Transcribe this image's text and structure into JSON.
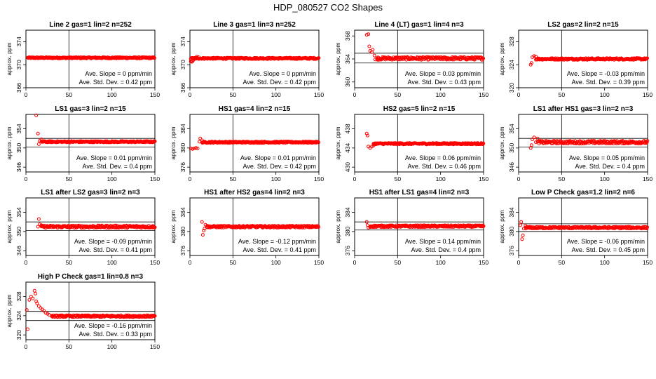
{
  "page": {
    "title": "HDP_080527   CO2 Shapes"
  },
  "style": {
    "point_color": "#ff0000",
    "line_color": "#000000"
  },
  "chart_data": [
    {
      "type": "scatter",
      "title": "Line 2 gas=1 lin=2 n=252",
      "ylabel": "approx. ppm",
      "xlim": [
        0,
        150
      ],
      "ylim": [
        366,
        376
      ],
      "yticks": [
        366,
        370,
        374
      ],
      "xticks": [
        0,
        50,
        100,
        150
      ],
      "vline": 50,
      "hlines": [
        371.2
      ],
      "slope_label": "Ave. Slope =",
      "slope_value": "0",
      "slope_unit": "ppm/min",
      "std_label": "Ave. Std. Dev. =",
      "std_value": "0.42",
      "std_unit": "ppm",
      "base": 371.2,
      "initial": [],
      "noise": 0.12,
      "x_start": 2,
      "x_end": 150
    },
    {
      "type": "scatter",
      "title": "Line 3 gas=1 lin=3 n=252",
      "ylabel": "approx. ppm",
      "xlim": [
        0,
        150
      ],
      "ylim": [
        366,
        376
      ],
      "yticks": [
        366,
        370,
        374
      ],
      "xticks": [
        0,
        50,
        100,
        150
      ],
      "vline": 50,
      "hlines": [],
      "slope_label": "Ave. Slope =",
      "slope_value": "0",
      "slope_unit": "ppm/min",
      "std_label": "Ave. Std. Dev. =",
      "std_value": "0.42",
      "std_unit": "ppm",
      "base": 371.1,
      "initial": [
        [
          1,
          370.6
        ],
        [
          2,
          370.5
        ],
        [
          3,
          370.6
        ],
        [
          4,
          370.8
        ],
        [
          5,
          371.0
        ],
        [
          6,
          371.1
        ],
        [
          8,
          371.4
        ],
        [
          10,
          371.3
        ]
      ],
      "noise": 0.12,
      "x_start": 1,
      "x_end": 150
    },
    {
      "type": "scatter",
      "title": "Line 4 (LT) gas=1 lin=4 n=3",
      "ylabel": "approx. ppm",
      "xlim": [
        0,
        150
      ],
      "ylim": [
        359,
        369
      ],
      "yticks": [
        360,
        364,
        368
      ],
      "xticks": [
        0,
        50,
        100,
        150
      ],
      "vline": 50,
      "hlines": [
        365.0,
        363.3
      ],
      "slope_label": "Ave. Slope =",
      "slope_value": "0.03",
      "slope_unit": "ppm/min",
      "std_label": "Ave. Std. Dev. =",
      "std_value": "0.43",
      "std_unit": "ppm",
      "base": 364.1,
      "initial": [
        [
          14,
          368.2
        ],
        [
          16,
          368.3
        ],
        [
          17,
          366.2
        ],
        [
          18,
          365.4
        ],
        [
          20,
          365.2
        ],
        [
          21,
          365.6
        ],
        [
          23,
          364.6
        ],
        [
          24,
          363.9
        ],
        [
          26,
          364.0
        ]
      ],
      "noise": 0.25,
      "x_start": 26,
      "x_end": 150
    },
    {
      "type": "scatter",
      "title": "LS2 gas=2 lin=2 n=15",
      "ylabel": "approx. ppm",
      "xlim": [
        0,
        150
      ],
      "ylim": [
        320,
        330
      ],
      "yticks": [
        320,
        324,
        328
      ],
      "xticks": [
        0,
        50,
        100,
        150
      ],
      "vline": 50,
      "hlines": [],
      "slope_label": "Ave. Slope =",
      "slope_value": "-0.03",
      "slope_unit": "ppm/min",
      "std_label": "Ave. Std. Dev. =",
      "std_value": "0.39",
      "std_unit": "ppm",
      "base": 325.0,
      "initial": [
        [
          14,
          324.0
        ],
        [
          15,
          324.3
        ],
        [
          16,
          325.3
        ],
        [
          18,
          325.5
        ],
        [
          20,
          325.4
        ]
      ],
      "noise": 0.15,
      "x_start": 20,
      "x_end": 150
    },
    {
      "type": "scatter",
      "title": "LS1 gas=3 lin=2 n=15",
      "ylabel": "approx. ppm",
      "xlim": [
        0,
        150
      ],
      "ylim": [
        345,
        357
      ],
      "yticks": [
        346,
        350,
        354
      ],
      "xticks": [
        0,
        50,
        100,
        150
      ],
      "vline": 50,
      "hlines": [
        352.0,
        350.2
      ],
      "slope_label": "Ave. Slope =",
      "slope_value": "0.01",
      "slope_unit": "ppm/min",
      "std_label": "Ave. Std. Dev. =",
      "std_value": "0.4",
      "std_unit": "ppm",
      "base": 351.3,
      "initial": [
        [
          12,
          356.8
        ],
        [
          14,
          353.0
        ],
        [
          15,
          350.8
        ],
        [
          16,
          351.5
        ],
        [
          18,
          351.8
        ]
      ],
      "noise": 0.15,
      "x_start": 18,
      "x_end": 150
    },
    {
      "type": "scatter",
      "title": "HS1 gas=4 lin=2 n=15",
      "ylabel": "approx. ppm",
      "xlim": [
        0,
        150
      ],
      "ylim": [
        375,
        387
      ],
      "yticks": [
        376,
        380,
        384
      ],
      "xticks": [
        0,
        50,
        100,
        150
      ],
      "vline": 50,
      "hlines": [],
      "slope_label": "Ave. Slope =",
      "slope_value": "0.01",
      "slope_unit": "ppm/min",
      "std_label": "Ave. Std. Dev. =",
      "std_value": "0.42",
      "std_unit": "ppm",
      "base": 381.2,
      "initial": [
        [
          1,
          379.9
        ],
        [
          3,
          379.8
        ],
        [
          5,
          379.9
        ],
        [
          7,
          380.0
        ],
        [
          9,
          379.9
        ],
        [
          11,
          381.3
        ],
        [
          12,
          382.0
        ],
        [
          14,
          381.6
        ]
      ],
      "noise": 0.15,
      "x_start": 14,
      "x_end": 150
    },
    {
      "type": "scatter",
      "title": "HS2 gas=5 lin=2 n=15",
      "ylabel": "approx. ppm",
      "xlim": [
        0,
        150
      ],
      "ylim": [
        429,
        441
      ],
      "yticks": [
        430,
        434,
        438
      ],
      "xticks": [
        0,
        50,
        100,
        150
      ],
      "vline": 50,
      "hlines": [],
      "slope_label": "Ave. Slope =",
      "slope_value": "0.06",
      "slope_unit": "ppm/min",
      "std_label": "Ave. Std. Dev. =",
      "std_value": "0.46",
      "std_unit": "ppm",
      "base": 434.9,
      "initial": [
        [
          14,
          437.0
        ],
        [
          15,
          436.6
        ],
        [
          16,
          434.3
        ],
        [
          18,
          434.0
        ],
        [
          20,
          434.3
        ],
        [
          22,
          434.5
        ]
      ],
      "noise": 0.15,
      "x_start": 22,
      "x_end": 150
    },
    {
      "type": "scatter",
      "title": "LS1 after HS1 gas=3 lin=2 n=3",
      "ylabel": "approx. ppm",
      "xlim": [
        0,
        150
      ],
      "ylim": [
        345,
        357
      ],
      "yticks": [
        346,
        350,
        354
      ],
      "xticks": [
        0,
        50,
        100,
        150
      ],
      "vline": 50,
      "hlines": [
        352.0,
        350.2
      ],
      "slope_label": "Ave. Slope =",
      "slope_value": "0.05",
      "slope_unit": "ppm/min",
      "std_label": "Ave. Std. Dev. =",
      "std_value": "0.4",
      "std_unit": "ppm",
      "base": 351.2,
      "initial": [
        [
          14,
          350.0
        ],
        [
          15,
          350.6
        ],
        [
          16,
          351.8
        ],
        [
          18,
          352.2
        ],
        [
          20,
          351.2
        ],
        [
          22,
          352.0
        ]
      ],
      "noise": 0.3,
      "x_start": 22,
      "x_end": 150
    },
    {
      "type": "scatter",
      "title": "LS1 after LS2 gas=3 lin=2 n=3",
      "ylabel": "approx. ppm",
      "xlim": [
        0,
        150
      ],
      "ylim": [
        345,
        357
      ],
      "yticks": [
        346,
        350,
        354
      ],
      "xticks": [
        0,
        50,
        100,
        150
      ],
      "vline": 50,
      "hlines": [
        352.0,
        350.2
      ],
      "slope_label": "Ave. Slope =",
      "slope_value": "-0.09",
      "slope_unit": "ppm/min",
      "std_label": "Ave. Std. Dev. =",
      "std_value": "0.41",
      "std_unit": "ppm",
      "base": 351.0,
      "initial": [
        [
          14,
          351.0
        ],
        [
          15,
          352.6
        ],
        [
          16,
          351.5
        ],
        [
          18,
          351.3
        ]
      ],
      "noise": 0.25,
      "x_start": 18,
      "x_end": 150
    },
    {
      "type": "scatter",
      "title": "HS1 after HS2 gas=4 lin=2 n=3",
      "ylabel": "approx. ppm",
      "xlim": [
        0,
        150
      ],
      "ylim": [
        375,
        387
      ],
      "yticks": [
        376,
        380,
        384
      ],
      "xticks": [
        0,
        50,
        100,
        150
      ],
      "vline": 50,
      "hlines": [],
      "slope_label": "Ave. Slope =",
      "slope_value": "-0.12",
      "slope_unit": "ppm/min",
      "std_label": "Ave. Std. Dev. =",
      "std_value": "0.41",
      "std_unit": "ppm",
      "base": 381.0,
      "initial": [
        [
          14,
          382.0
        ],
        [
          15,
          379.3
        ],
        [
          16,
          380.2
        ],
        [
          17,
          380.6
        ],
        [
          18,
          381.4
        ],
        [
          20,
          381.2
        ]
      ],
      "noise": 0.2,
      "x_start": 20,
      "x_end": 150
    },
    {
      "type": "scatter",
      "title": "HS1 after LS1 gas=4 lin=2 n=3",
      "ylabel": "approx. ppm",
      "xlim": [
        0,
        150
      ],
      "ylim": [
        375,
        387
      ],
      "yticks": [
        376,
        380,
        384
      ],
      "xticks": [
        0,
        50,
        100,
        150
      ],
      "vline": 50,
      "hlines": [
        382.0,
        380.3
      ],
      "slope_label": "Ave. Slope =",
      "slope_value": "0.14",
      "slope_unit": "ppm/min",
      "std_label": "Ave. Std. Dev. =",
      "std_value": "0.4",
      "std_unit": "ppm",
      "base": 381.1,
      "initial": [
        [
          14,
          382.0
        ],
        [
          15,
          381.3
        ],
        [
          16,
          380.8
        ],
        [
          18,
          380.9
        ]
      ],
      "noise": 0.2,
      "x_start": 18,
      "x_end": 150
    },
    {
      "type": "scatter",
      "title": "Low P Check gas=1.2 lin=2 n=6",
      "ylabel": "approx. ppm",
      "xlim": [
        0,
        150
      ],
      "ylim": [
        375,
        387
      ],
      "yticks": [
        376,
        380,
        384
      ],
      "xticks": [
        0,
        50,
        100,
        150
      ],
      "vline": 50,
      "hlines": [
        381.6,
        380.0
      ],
      "slope_label": "Ave. Slope =",
      "slope_value": "-0.06",
      "slope_unit": "ppm/min",
      "std_label": "Ave. Std. Dev. =",
      "std_value": "0.45",
      "std_unit": "ppm",
      "base": 380.8,
      "initial": [
        [
          2,
          381.3
        ],
        [
          3,
          382.0
        ],
        [
          4,
          378.4
        ],
        [
          5,
          379.2
        ],
        [
          6,
          380.6
        ],
        [
          8,
          381.2
        ]
      ],
      "noise": 0.2,
      "x_start": 8,
      "x_end": 150
    },
    {
      "type": "scatter",
      "title": "High P Check gas=1 lin=0.8 n=3",
      "ylabel": "approx. ppm",
      "xlim": [
        0,
        150
      ],
      "ylim": [
        319,
        331
      ],
      "yticks": [
        320,
        324,
        328
      ],
      "xticks": [
        0,
        50,
        100,
        150
      ],
      "vline": 50,
      "hlines": [
        324.9,
        323.0
      ],
      "slope_label": "Ave. Slope =",
      "slope_value": "-0.16",
      "slope_unit": "ppm/min",
      "std_label": "Ave. Std. Dev. =",
      "std_value": "0.33",
      "std_unit": "ppm",
      "base": 323.9,
      "initial": [
        [
          1,
          325.2
        ],
        [
          2,
          321.2
        ],
        [
          4,
          327.3
        ],
        [
          6,
          328.0
        ],
        [
          8,
          327.6
        ],
        [
          10,
          329.2
        ],
        [
          11,
          328.6
        ],
        [
          12,
          327.0
        ],
        [
          13,
          326.6
        ],
        [
          15,
          326.0
        ],
        [
          17,
          325.6
        ],
        [
          19,
          325.3
        ],
        [
          21,
          325.0
        ],
        [
          23,
          324.6
        ],
        [
          25,
          324.4
        ],
        [
          27,
          324.2
        ],
        [
          30,
          324.0
        ]
      ],
      "noise": 0.2,
      "x_start": 30,
      "x_end": 150
    }
  ]
}
